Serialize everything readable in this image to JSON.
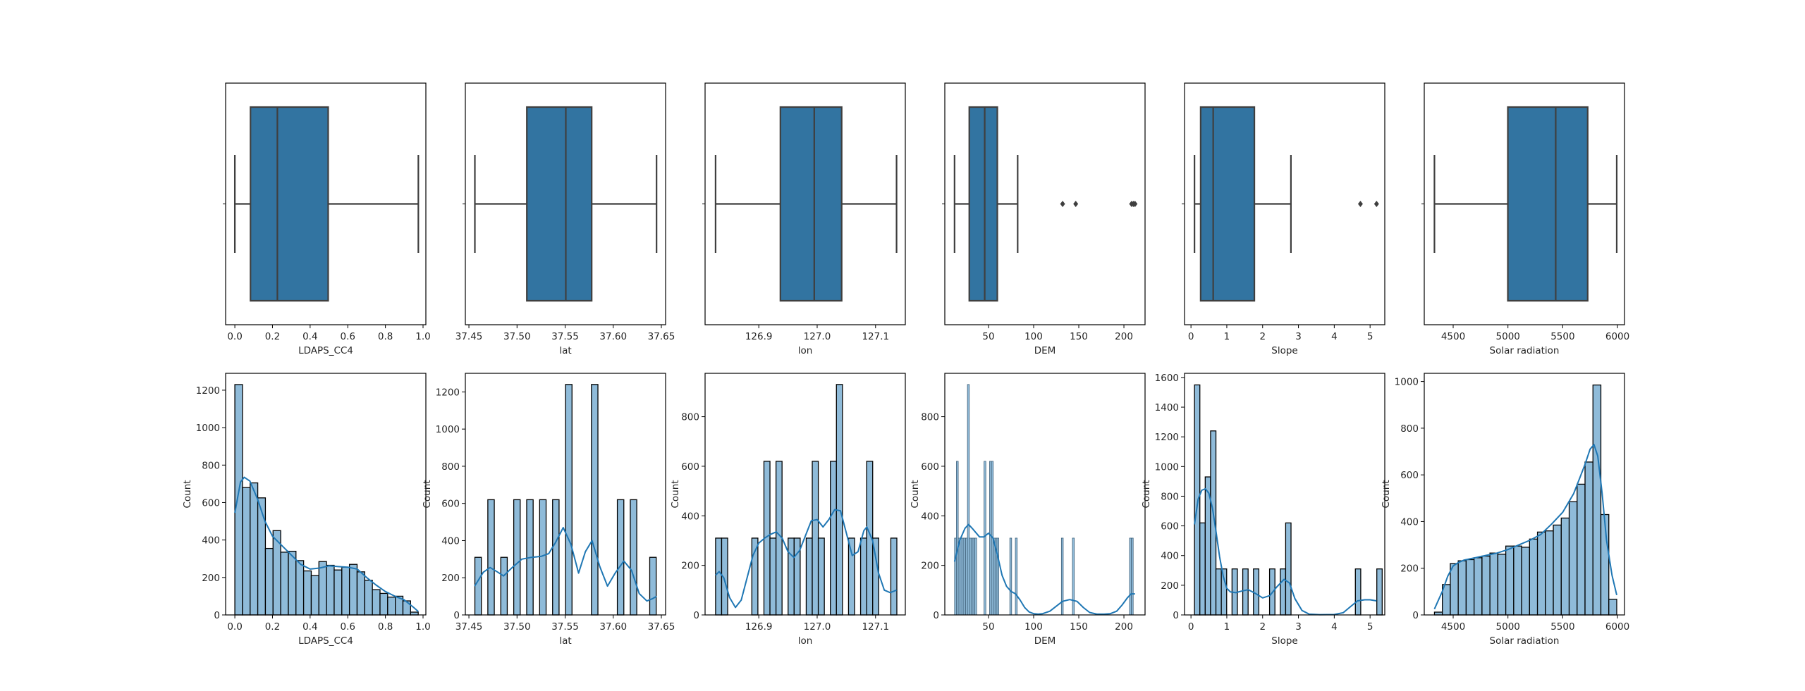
{
  "colors": {
    "box_fill": "#3274a1",
    "box_edge": "#3f3f3f",
    "hist_fill": "#8fbbd9",
    "hist_edge": "#000000",
    "kde_line": "#1f77b4",
    "axes_edge": "#000000"
  },
  "chart_data": [
    {
      "type": "box",
      "variable": "LDAPS_CC4",
      "xlabel": "LDAPS_CC4",
      "xlim": [
        -0.049,
        1.015
      ],
      "xticks": [
        0.0,
        0.2,
        0.4,
        0.6,
        0.8,
        1.0
      ],
      "xtick_labels": [
        "0.0",
        "0.2",
        "0.4",
        "0.6",
        "0.8",
        "1.0"
      ],
      "whisker_low": 0.0,
      "q1": 0.083,
      "median": 0.226,
      "q3": 0.496,
      "whisker_high": 0.975,
      "outliers": []
    },
    {
      "type": "box",
      "variable": "lat",
      "xlabel": "lat",
      "xlim": [
        37.4463,
        37.6544
      ],
      "xticks": [
        37.45,
        37.5,
        37.55,
        37.6,
        37.65
      ],
      "xtick_labels": [
        "37.45",
        "37.50",
        "37.55",
        "37.60",
        "37.65"
      ],
      "whisker_low": 37.4562,
      "q1": 37.5102,
      "median": 37.5507,
      "q3": 37.5776,
      "whisker_high": 37.645,
      "outliers": []
    },
    {
      "type": "box",
      "variable": "lon",
      "xlabel": "lon",
      "xlim": [
        126.808,
        127.151
      ],
      "xticks": [
        126.9,
        127.0,
        127.1
      ],
      "xtick_labels": [
        "126.9",
        "127.0",
        "127.1"
      ],
      "whisker_low": 126.826,
      "q1": 126.937,
      "median": 126.995,
      "q3": 127.042,
      "whisker_high": 127.136,
      "outliers": []
    },
    {
      "type": "box",
      "variable": "DEM",
      "xlabel": "DEM",
      "xlim": [
        1.6,
        223.4
      ],
      "xticks": [
        50,
        100,
        150,
        200
      ],
      "xtick_labels": [
        "50",
        "100",
        "150",
        "200"
      ],
      "whisker_low": 12.4,
      "q1": 28.7,
      "median": 45.8,
      "q3": 59.8,
      "whisker_high": 82.3,
      "outliers": [
        132.1,
        146.6,
        208.5,
        210.5,
        212.3
      ]
    },
    {
      "type": "box",
      "variable": "Slope",
      "xlabel": "Slope",
      "xlim": [
        -0.18,
        5.41
      ],
      "xticks": [
        0,
        1,
        2,
        3,
        4,
        5
      ],
      "xtick_labels": [
        "0",
        "1",
        "2",
        "3",
        "4",
        "5"
      ],
      "whisker_low": 0.098,
      "q1": 0.27,
      "median": 0.62,
      "q3": 1.77,
      "whisker_high": 2.79,
      "outliers": [
        4.73,
        5.18
      ]
    },
    {
      "type": "box",
      "variable": "Solar radiation",
      "xlabel": "Solar radiation",
      "xlim": [
        4236,
        6064
      ],
      "xticks": [
        4500,
        5000,
        5500,
        6000
      ],
      "xtick_labels": [
        "4500",
        "5000",
        "5500",
        "6000"
      ],
      "whisker_low": 4329,
      "q1": 4999,
      "median": 5436,
      "q3": 5728,
      "whisker_high": 5993,
      "outliers": []
    },
    {
      "type": "histogram",
      "variable": "LDAPS_CC4",
      "xlabel": "LDAPS_CC4",
      "ylabel": "Count",
      "xlim": [
        -0.049,
        1.015
      ],
      "ylim": [
        0,
        1290
      ],
      "xticks": [
        0.0,
        0.2,
        0.4,
        0.6,
        0.8,
        1.0
      ],
      "xtick_labels": [
        "0.0",
        "0.2",
        "0.4",
        "0.6",
        "0.8",
        "1.0"
      ],
      "yticks": [
        0,
        200,
        400,
        600,
        800,
        1000,
        1200
      ],
      "ytick_labels": [
        "0",
        "200",
        "400",
        "600",
        "800",
        "1000",
        "1200"
      ],
      "bin_start": 0.0,
      "bin_width": 0.0406,
      "counts": [
        1230,
        680,
        705,
        625,
        355,
        450,
        335,
        340,
        290,
        235,
        210,
        285,
        265,
        240,
        255,
        270,
        230,
        185,
        135,
        115,
        95,
        100,
        75,
        15
      ],
      "kde_x": [
        0.0,
        0.03,
        0.05,
        0.08,
        0.12,
        0.16,
        0.2,
        0.25,
        0.3,
        0.35,
        0.4,
        0.45,
        0.5,
        0.55,
        0.6,
        0.65,
        0.7,
        0.75,
        0.8,
        0.85,
        0.9,
        0.95,
        0.975
      ],
      "kde_y": [
        545,
        710,
        735,
        715,
        620,
        500,
        420,
        370,
        320,
        270,
        245,
        250,
        262,
        258,
        255,
        245,
        200,
        160,
        125,
        100,
        80,
        40,
        18
      ]
    },
    {
      "type": "histogram",
      "variable": "lat",
      "xlabel": "lat",
      "ylabel": "Count",
      "xlim": [
        37.4463,
        37.6544
      ],
      "ylim": [
        0,
        1300
      ],
      "xticks": [
        37.45,
        37.5,
        37.55,
        37.6,
        37.65
      ],
      "xtick_labels": [
        "37.45",
        "37.50",
        "37.55",
        "37.60",
        "37.65"
      ],
      "yticks": [
        0,
        200,
        400,
        600,
        800,
        1000,
        1200
      ],
      "ytick_labels": [
        "0",
        "200",
        "400",
        "600",
        "800",
        "1000",
        "1200"
      ],
      "bin_start": 37.4562,
      "bin_width": 0.00673,
      "counts": [
        310,
        0,
        620,
        0,
        310,
        0,
        620,
        0,
        620,
        0,
        620,
        0,
        620,
        0,
        1240,
        0,
        0,
        0,
        1240,
        0,
        0,
        0,
        620,
        0,
        620,
        0,
        0,
        310
      ],
      "kde_x": [
        37.456,
        37.465,
        37.472,
        37.48,
        37.486,
        37.495,
        37.505,
        37.515,
        37.525,
        37.533,
        37.54,
        37.548,
        37.556,
        37.564,
        37.571,
        37.578,
        37.586,
        37.594,
        37.602,
        37.611,
        37.619,
        37.627,
        37.635,
        37.641,
        37.645
      ],
      "kde_y": [
        155,
        230,
        255,
        230,
        210,
        255,
        300,
        310,
        315,
        330,
        390,
        470,
        380,
        225,
        340,
        400,
        260,
        155,
        225,
        290,
        240,
        115,
        75,
        88,
        100
      ]
    },
    {
      "type": "histogram",
      "variable": "lon",
      "xlabel": "lon",
      "ylabel": "Count",
      "xlim": [
        126.808,
        127.151
      ],
      "ylim": [
        0,
        975
      ],
      "xticks": [
        126.9,
        127.0,
        127.1
      ],
      "xtick_labels": [
        "126.9",
        "127.0",
        "127.1"
      ],
      "yticks": [
        0,
        200,
        400,
        600,
        800
      ],
      "ytick_labels": [
        "0",
        "200",
        "400",
        "600",
        "800"
      ],
      "bin_start": 126.826,
      "bin_width": 0.01035,
      "counts": [
        310,
        310,
        0,
        0,
        0,
        0,
        310,
        0,
        620,
        310,
        620,
        0,
        310,
        310,
        0,
        310,
        620,
        310,
        0,
        620,
        930,
        0,
        310,
        0,
        310,
        620,
        310,
        0,
        0,
        310
      ],
      "kde_x": [
        126.826,
        126.832,
        126.84,
        126.85,
        126.86,
        126.87,
        126.88,
        126.89,
        126.9,
        126.91,
        126.92,
        126.93,
        126.94,
        126.95,
        126.96,
        126.97,
        126.98,
        126.99,
        127.0,
        127.01,
        127.02,
        127.03,
        127.04,
        127.05,
        127.06,
        127.07,
        127.08,
        127.085,
        127.095,
        127.105,
        127.115,
        127.125,
        127.136
      ],
      "kde_y": [
        160,
        175,
        150,
        70,
        30,
        60,
        150,
        240,
        290,
        310,
        325,
        335,
        310,
        255,
        232,
        260,
        320,
        380,
        385,
        355,
        385,
        425,
        420,
        330,
        240,
        255,
        340,
        355,
        300,
        170,
        100,
        90,
        100
      ]
    },
    {
      "type": "histogram",
      "variable": "DEM",
      "xlabel": "DEM",
      "ylabel": "Count",
      "xlim": [
        1.6,
        223.4
      ],
      "ylim": [
        0,
        975
      ],
      "xticks": [
        50,
        100,
        150,
        200
      ],
      "xtick_labels": [
        "50",
        "100",
        "150",
        "200"
      ],
      "yticks": [
        0,
        200,
        400,
        600,
        800
      ],
      "ytick_labels": [
        "0",
        "200",
        "400",
        "600",
        "800"
      ],
      "bin_start": 12.4,
      "bin_width": 2.04,
      "counts": [
        310,
        620,
        310,
        310,
        310,
        310,
        310,
        930,
        310,
        310,
        310,
        310,
        0,
        0,
        0,
        0,
        620,
        0,
        0,
        620,
        620,
        310,
        310,
        310,
        0,
        0,
        0,
        0,
        0,
        0,
        310,
        0,
        0,
        310,
        0,
        0,
        0,
        0,
        0,
        0,
        0,
        0,
        0,
        0,
        0,
        0,
        0,
        0,
        0,
        0,
        0,
        0,
        0,
        0,
        0,
        0,
        0,
        0,
        310,
        0,
        0,
        0,
        0,
        0,
        310,
        0,
        0,
        0,
        0,
        0,
        0,
        0,
        0,
        0,
        0,
        0,
        0,
        0,
        0,
        0,
        0,
        0,
        0,
        0,
        0,
        0,
        0,
        0,
        0,
        0,
        0,
        0,
        0,
        0,
        0,
        310,
        310
      ],
      "kde_x": [
        12.4,
        18,
        24,
        28,
        33,
        40,
        45,
        50,
        55,
        60,
        65,
        70,
        75,
        80,
        85,
        90,
        95,
        100,
        105,
        110,
        118,
        125,
        132,
        140,
        148,
        155,
        162,
        170,
        178,
        185,
        192,
        198,
        204,
        208,
        212.3
      ],
      "kde_y": [
        215,
        300,
        350,
        365,
        345,
        315,
        315,
        330,
        310,
        240,
        160,
        115,
        95,
        85,
        60,
        30,
        12,
        5,
        3,
        5,
        15,
        35,
        55,
        62,
        55,
        30,
        10,
        3,
        3,
        5,
        15,
        40,
        70,
        85,
        85
      ]
    },
    {
      "type": "histogram",
      "variable": "Slope",
      "xlabel": "Slope",
      "ylabel": "Count",
      "xlim": [
        -0.18,
        5.41
      ],
      "ylim": [
        0,
        1628
      ],
      "xticks": [
        0,
        1,
        2,
        3,
        4,
        5
      ],
      "xtick_labels": [
        "0",
        "1",
        "2",
        "3",
        "4",
        "5"
      ],
      "yticks": [
        0,
        200,
        400,
        600,
        800,
        1000,
        1200,
        1400,
        1600
      ],
      "ytick_labels": [
        "0",
        "200",
        "400",
        "600",
        "800",
        "1000",
        "1200",
        "1400",
        "1600"
      ],
      "bin_start": 0.098,
      "bin_width": 0.1497,
      "counts": [
        1550,
        620,
        930,
        1240,
        310,
        310,
        0,
        310,
        0,
        310,
        0,
        310,
        0,
        0,
        310,
        0,
        310,
        620,
        0,
        0,
        0,
        0,
        0,
        0,
        0,
        0,
        0,
        0,
        0,
        0,
        310,
        0,
        0,
        0,
        310
      ],
      "kde_x": [
        0.098,
        0.2,
        0.3,
        0.4,
        0.5,
        0.6,
        0.7,
        0.8,
        0.9,
        1.0,
        1.1,
        1.25,
        1.4,
        1.6,
        1.8,
        2.0,
        2.2,
        2.4,
        2.6,
        2.75,
        2.9,
        3.1,
        3.3,
        3.6,
        4.0,
        4.25,
        4.45,
        4.65,
        4.85,
        5.0,
        5.18
      ],
      "kde_y": [
        610,
        780,
        840,
        850,
        820,
        720,
        560,
        390,
        260,
        180,
        155,
        150,
        160,
        170,
        145,
        115,
        130,
        190,
        240,
        215,
        110,
        30,
        5,
        2,
        3,
        15,
        55,
        95,
        102,
        102,
        95
      ]
    },
    {
      "type": "histogram",
      "variable": "Solar radiation",
      "xlabel": "Solar radiation",
      "ylabel": "Count",
      "xlim": [
        4236,
        6064
      ],
      "ylim": [
        0,
        1035
      ],
      "xticks": [
        4500,
        5000,
        5500,
        6000
      ],
      "xtick_labels": [
        "4500",
        "5000",
        "5500",
        "6000"
      ],
      "yticks": [
        0,
        200,
        400,
        600,
        800,
        1000
      ],
      "ytick_labels": [
        "0",
        "200",
        "400",
        "600",
        "800",
        "1000"
      ],
      "bin_start": 4329,
      "bin_width": 72.35,
      "counts": [
        12,
        130,
        220,
        232,
        237,
        245,
        252,
        265,
        260,
        295,
        295,
        290,
        325,
        355,
        360,
        385,
        415,
        485,
        560,
        655,
        985,
        430,
        67
      ],
      "kde_x": [
        4329,
        4400,
        4450,
        4500,
        4550,
        4600,
        4700,
        4800,
        4900,
        5000,
        5100,
        5200,
        5300,
        5400,
        5500,
        5600,
        5650,
        5700,
        5750,
        5785,
        5820,
        5860,
        5900,
        5950,
        5993
      ],
      "kde_y": [
        25,
        100,
        165,
        210,
        225,
        235,
        245,
        255,
        265,
        280,
        300,
        320,
        345,
        390,
        440,
        520,
        580,
        640,
        710,
        730,
        680,
        520,
        320,
        170,
        85
      ]
    }
  ]
}
